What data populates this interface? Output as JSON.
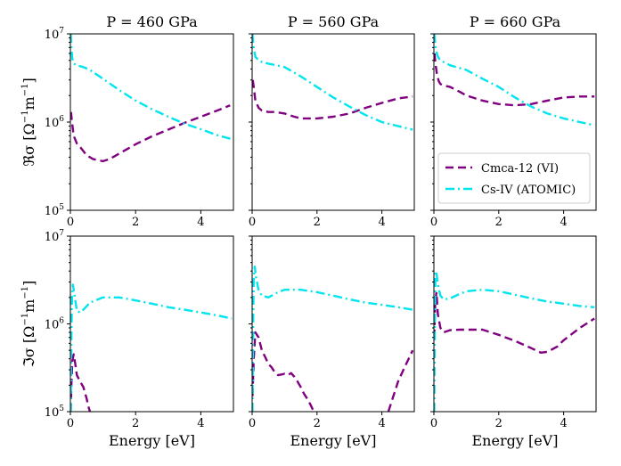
{
  "chart_data": [
    {
      "type": "line",
      "title": "P = 460 GPa",
      "ylabel_sym": "ℜσ",
      "quantity": "real",
      "xlim": [
        0,
        5
      ],
      "ylim_log10": [
        5,
        7
      ],
      "series": [
        {
          "name": "Cmca-12 (VI)",
          "x": [
            0.02,
            0.05,
            0.1,
            0.2,
            0.3,
            0.5,
            0.7,
            1.0,
            1.2,
            1.5,
            2.0,
            2.5,
            3.0,
            3.5,
            4.0,
            4.5,
            4.9
          ],
          "y": [
            1300000,
            1000000,
            700000,
            570000,
            520000,
            420000,
            380000,
            360000,
            380000,
            440000,
            560000,
            690000,
            820000,
            980000,
            1150000,
            1350000,
            1550000
          ]
        },
        {
          "name": "Cs-IV (ATOMIC)",
          "x": [
            0.01,
            0.03,
            0.06,
            0.1,
            0.2,
            0.4,
            0.6,
            1.0,
            1.5,
            2.0,
            2.5,
            3.0,
            3.5,
            4.0,
            4.5,
            4.95
          ],
          "y": [
            10000000,
            7000000,
            5200000,
            4600000,
            4400000,
            4200000,
            3900000,
            3100000,
            2300000,
            1750000,
            1400000,
            1150000,
            960000,
            830000,
            710000,
            640000
          ]
        }
      ]
    },
    {
      "type": "line",
      "title": "P = 560 GPa",
      "ylabel_sym": "ℜσ",
      "quantity": "real",
      "xlim": [
        0,
        5
      ],
      "ylim_log10": [
        5,
        7
      ],
      "series": [
        {
          "name": "Cmca-12 (VI)",
          "x": [
            0.02,
            0.05,
            0.1,
            0.2,
            0.3,
            0.5,
            0.7,
            1.0,
            1.3,
            1.5,
            2.0,
            2.5,
            3.0,
            3.5,
            4.0,
            4.5,
            4.95
          ],
          "y": [
            3000000,
            2500000,
            1750000,
            1450000,
            1350000,
            1300000,
            1300000,
            1250000,
            1150000,
            1100000,
            1100000,
            1150000,
            1250000,
            1450000,
            1650000,
            1850000,
            1950000
          ]
        },
        {
          "name": "Cs-IV (ATOMIC)",
          "x": [
            0.01,
            0.03,
            0.06,
            0.1,
            0.2,
            0.3,
            0.5,
            1.0,
            1.5,
            2.0,
            2.5,
            3.0,
            3.5,
            4.0,
            4.5,
            4.95
          ],
          "y": [
            10000000,
            8000000,
            6500000,
            5500000,
            5000000,
            4800000,
            4600000,
            4200000,
            3300000,
            2500000,
            1900000,
            1500000,
            1200000,
            1000000,
            900000,
            820000
          ]
        }
      ]
    },
    {
      "type": "line",
      "title": "P = 660 GPa",
      "ylabel_sym": "ℜσ",
      "quantity": "real",
      "xlim": [
        0,
        5
      ],
      "ylim_log10": [
        5,
        7
      ],
      "series": [
        {
          "name": "Cmca-12 (VI)",
          "x": [
            0.02,
            0.05,
            0.1,
            0.15,
            0.2,
            0.3,
            0.5,
            0.8,
            1.0,
            1.5,
            2.0,
            2.5,
            3.0,
            3.5,
            4.0,
            4.5,
            4.95
          ],
          "y": [
            6000000,
            4500000,
            3400000,
            2900000,
            2700000,
            2600000,
            2500000,
            2200000,
            2000000,
            1750000,
            1600000,
            1550000,
            1600000,
            1750000,
            1900000,
            1950000,
            1950000
          ]
        },
        {
          "name": "Cs-IV (ATOMIC)",
          "x": [
            0.01,
            0.03,
            0.06,
            0.1,
            0.15,
            0.2,
            0.3,
            0.5,
            1.0,
            1.5,
            2.0,
            2.5,
            3.0,
            3.5,
            4.0,
            4.5,
            4.95
          ],
          "y": [
            10000000,
            8500000,
            6800000,
            5800000,
            5300000,
            5000000,
            4800000,
            4400000,
            3900000,
            3100000,
            2500000,
            1900000,
            1500000,
            1250000,
            1100000,
            1000000,
            920000
          ]
        }
      ]
    },
    {
      "type": "line",
      "title": "",
      "ylabel_sym": "ℑσ",
      "quantity": "imag",
      "xlim": [
        0,
        5
      ],
      "ylim_log10": [
        5,
        7
      ],
      "series": [
        {
          "name": "Cmca-12 (VI)",
          "x": [
            0.01,
            0.03,
            0.06,
            0.1,
            0.15,
            0.2,
            0.3,
            0.4,
            0.5,
            0.55,
            0.6
          ],
          "y": [
            100000,
            200000,
            380000,
            450000,
            350000,
            260000,
            220000,
            190000,
            140000,
            115000,
            100000
          ]
        },
        {
          "name": "Cs-IV (ATOMIC)",
          "x": [
            0.01,
            0.03,
            0.05,
            0.08,
            0.12,
            0.2,
            0.3,
            0.4,
            0.6,
            1.0,
            1.5,
            2.0,
            2.5,
            3.0,
            3.5,
            4.0,
            4.5,
            4.95
          ],
          "y": [
            100000,
            700000,
            2000000,
            2800000,
            2200000,
            1400000,
            1350000,
            1450000,
            1750000,
            2000000,
            2000000,
            1850000,
            1700000,
            1550000,
            1450000,
            1350000,
            1250000,
            1150000
          ]
        }
      ]
    },
    {
      "type": "line",
      "title": "",
      "ylabel_sym": "ℑσ",
      "quantity": "imag",
      "xlim": [
        0,
        5
      ],
      "ylim_log10": [
        5,
        7
      ],
      "series": [
        {
          "name": "Cmca-12 (VI)",
          "x": [
            0.01,
            0.05,
            0.1,
            0.2,
            0.3,
            0.4,
            0.5,
            0.6,
            0.7,
            0.8,
            0.9,
            1.0,
            1.1,
            1.2,
            1.3,
            1.4,
            1.5,
            1.6,
            1.7,
            1.8,
            1.9
          ],
          "y": [
            150000,
            400000,
            800000,
            700000,
            500000,
            420000,
            350000,
            320000,
            280000,
            260000,
            265000,
            270000,
            260000,
            275000,
            250000,
            220000,
            190000,
            160000,
            140000,
            120000,
            100000
          ],
          "x2": [
            4.2,
            4.3,
            4.5,
            4.7,
            4.95
          ],
          "y2": [
            100000,
            130000,
            220000,
            320000,
            500000
          ]
        },
        {
          "name": "Cs-IV (ATOMIC)",
          "x": [
            0.01,
            0.03,
            0.05,
            0.08,
            0.12,
            0.2,
            0.3,
            0.5,
            0.8,
            1.0,
            1.5,
            2.0,
            2.5,
            3.0,
            3.5,
            4.0,
            4.5,
            4.95
          ],
          "y": [
            100000,
            900000,
            3200000,
            4500000,
            3400000,
            2400000,
            2100000,
            2000000,
            2300000,
            2450000,
            2450000,
            2300000,
            2100000,
            1900000,
            1750000,
            1650000,
            1550000,
            1450000
          ]
        }
      ]
    },
    {
      "type": "line",
      "title": "",
      "ylabel_sym": "ℑσ",
      "quantity": "imag",
      "xlim": [
        0,
        5
      ],
      "ylim_log10": [
        5,
        7
      ],
      "series": [
        {
          "name": "Cmca-12 (VI)",
          "x": [
            0.01,
            0.04,
            0.08,
            0.12,
            0.2,
            0.3,
            0.5,
            0.8,
            1.0,
            1.5,
            2.0,
            2.5,
            3.0,
            3.3,
            3.5,
            3.8,
            4.0,
            4.5,
            4.95
          ],
          "y": [
            700000,
            1800000,
            2300000,
            1300000,
            900000,
            800000,
            850000,
            860000,
            860000,
            860000,
            750000,
            640000,
            530000,
            470000,
            480000,
            550000,
            650000,
            900000,
            1150000
          ]
        },
        {
          "name": "Cs-IV (ATOMIC)",
          "x": [
            0.01,
            0.03,
            0.05,
            0.08,
            0.12,
            0.2,
            0.3,
            0.5,
            0.8,
            1.0,
            1.5,
            2.0,
            2.5,
            3.0,
            3.5,
            4.0,
            4.5,
            4.95
          ],
          "y": [
            100000,
            1500000,
            4000000,
            3800000,
            2800000,
            2100000,
            1900000,
            1950000,
            2200000,
            2350000,
            2450000,
            2350000,
            2150000,
            1950000,
            1800000,
            1700000,
            1600000,
            1550000
          ]
        }
      ]
    }
  ],
  "labels": {
    "xlabel": "Energy [eV]",
    "ylabel_real_sym": "ℜσ",
    "ylabel_imag_sym": "ℑσ",
    "ylabel_unit_open": "[Ω",
    "ylabel_unit_exp1": "−1",
    "ylabel_unit_mid": "m",
    "ylabel_unit_exp2": "−1",
    "ylabel_unit_close": "]",
    "xticks": [
      "0",
      "2",
      "4"
    ],
    "ytick_base": "10",
    "ytick_exps": [
      "5",
      "6",
      "7"
    ]
  },
  "legend": {
    "entries": [
      "Cmca-12 (VI)",
      "Cs-IV (ATOMIC)"
    ]
  },
  "colors": {
    "cmca": "#800080",
    "csiv": "#00E5EE"
  }
}
